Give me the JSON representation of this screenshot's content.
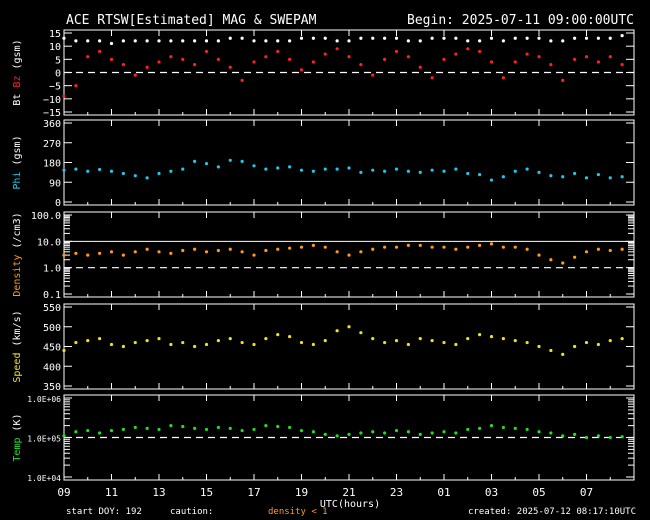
{
  "header": {
    "title": "ACE RTSW[Estimated] MAG & SWEPAM",
    "begin": "Begin: 2025-07-11 09:00:00UTC"
  },
  "footer": {
    "start_doy": "start DOY: 192",
    "caution": "caution:",
    "caution_note": "density < 1",
    "created": "created: 2025-07-12 08:17:10UTC"
  },
  "colors": {
    "background": "#000000",
    "axis": "#ffffff",
    "bt": "#ffffff",
    "bz": "#ff2020",
    "phi": "#20c8e8",
    "density": "#ff9a1a",
    "speed": "#f0e020",
    "temp": "#20e020"
  },
  "chart_data": {
    "type": "scatter",
    "xlabel": "UTC(hours)",
    "x_tick_labels": [
      "09",
      "11",
      "13",
      "15",
      "17",
      "19",
      "21",
      "23",
      "01",
      "03",
      "05",
      "07"
    ],
    "x_range_hours": [
      0,
      24
    ],
    "panels": [
      {
        "id": "mag",
        "ylabel_a": "Bt",
        "ylabel_b": "Bz",
        "ylabel_unit": "(gsm)",
        "ylim": [
          -15,
          15
        ],
        "y_ticks": [
          -15,
          -10,
          -5,
          0,
          5,
          10,
          15
        ],
        "y_tick_labels": [
          "−15",
          "−10",
          "−5",
          "0",
          "5",
          "10",
          "15"
        ],
        "dashed_lines": [
          0
        ],
        "series": [
          {
            "name": "Bt",
            "color_key": "bt",
            "x": [
              0,
              0.5,
              1,
              1.5,
              2,
              2.5,
              3,
              3.5,
              4,
              4.5,
              5,
              5.5,
              6,
              6.5,
              7,
              7.5,
              8,
              8.5,
              9,
              9.5,
              10,
              10.5,
              11,
              11.5,
              12,
              12.5,
              13,
              13.5,
              14,
              14.5,
              15,
              15.5,
              16,
              16.5,
              17,
              17.5,
              18,
              18.5,
              19,
              19.5,
              20,
              20.5,
              21,
              21.5,
              22,
              22.5,
              23,
              23.5
            ],
            "y": [
              13,
              12,
              12,
              12,
              11,
              12,
              12,
              12,
              12,
              12,
              12,
              12,
              12,
              12,
              13,
              13,
              12,
              12,
              12,
              12,
              13,
              13,
              13,
              12,
              12,
              13,
              13,
              13,
              13,
              12,
              12,
              13,
              13,
              13,
              12,
              12,
              13,
              12,
              13,
              13,
              13,
              12,
              12,
              13,
              13,
              13,
              13,
              14
            ]
          },
          {
            "name": "Bz",
            "color_key": "bz",
            "x": [
              0,
              0.5,
              1,
              1.5,
              2,
              2.5,
              3,
              3.5,
              4,
              4.5,
              5,
              5.5,
              6,
              6.5,
              7,
              7.5,
              8,
              8.5,
              9,
              9.5,
              10,
              10.5,
              11,
              11.5,
              12,
              12.5,
              13,
              13.5,
              14,
              14.5,
              15,
              15.5,
              16,
              16.5,
              17,
              17.5,
              18,
              18.5,
              19,
              19.5,
              20,
              20.5,
              21,
              21.5,
              22,
              22.5,
              23,
              23.5
            ],
            "y": [
              -9,
              -5,
              6,
              8,
              5,
              3,
              -1,
              2,
              4,
              6,
              5,
              3,
              8,
              5,
              2,
              -3,
              4,
              6,
              8,
              5,
              1,
              4,
              7,
              9,
              6,
              3,
              -1,
              5,
              8,
              6,
              2,
              -2,
              5,
              7,
              9,
              8,
              4,
              -2,
              4,
              7,
              6,
              3,
              -3,
              5,
              6,
              4,
              6,
              3
            ]
          }
        ]
      },
      {
        "id": "phi",
        "ylabel_a": "Phi",
        "ylabel_unit": "(gsm)",
        "ylim": [
          0,
          360
        ],
        "y_ticks": [
          0,
          90,
          180,
          270,
          360
        ],
        "y_tick_labels": [
          "0",
          "90",
          "180",
          "270",
          "360"
        ],
        "dashed_lines": [],
        "series": [
          {
            "name": "Phi",
            "color_key": "phi",
            "x": [
              0,
              0.5,
              1,
              1.5,
              2,
              2.5,
              3,
              3.5,
              4,
              4.5,
              5,
              5.5,
              6,
              6.5,
              7,
              7.5,
              8,
              8.5,
              9,
              9.5,
              10,
              10.5,
              11,
              11.5,
              12,
              12.5,
              13,
              13.5,
              14,
              14.5,
              15,
              15.5,
              16,
              16.5,
              17,
              17.5,
              18,
              18.5,
              19,
              19.5,
              20,
              20.5,
              21,
              21.5,
              22,
              22.5,
              23,
              23.5
            ],
            "y": [
              145,
              150,
              140,
              148,
              140,
              130,
              120,
              110,
              130,
              140,
              150,
              185,
              175,
              160,
              190,
              185,
              165,
              150,
              155,
              160,
              145,
              140,
              150,
              150,
              155,
              135,
              145,
              140,
              150,
              140,
              135,
              145,
              140,
              150,
              130,
              125,
              100,
              115,
              140,
              150,
              135,
              120,
              115,
              130,
              110,
              125,
              110,
              115
            ]
          }
        ]
      },
      {
        "id": "density",
        "ylabel_a": "Density",
        "ylabel_unit": "(/cm3)",
        "log_scale": true,
        "ylim": [
          0.1,
          100
        ],
        "y_ticks": [
          0.1,
          1,
          10,
          100
        ],
        "y_tick_labels": [
          "0.1",
          "1.0",
          "10.0",
          "100.0"
        ],
        "solid_lines": [
          10
        ],
        "dashed_lines": [
          1
        ],
        "series": [
          {
            "name": "Density",
            "color_key": "density",
            "x": [
              0,
              0.5,
              1,
              1.5,
              2,
              2.5,
              3,
              3.5,
              4,
              4.5,
              5,
              5.5,
              6,
              6.5,
              7,
              7.5,
              8,
              8.5,
              9,
              9.5,
              10,
              10.5,
              11,
              11.5,
              12,
              12.5,
              13,
              13.5,
              14,
              14.5,
              15,
              15.5,
              16,
              16.5,
              17,
              17.5,
              18,
              18.5,
              19,
              19.5,
              20,
              20.5,
              21,
              21.5,
              22,
              22.5,
              23,
              23.5
            ],
            "y": [
              3,
              3.5,
              3,
              3.5,
              4,
              3,
              4,
              5,
              4,
              3.5,
              4.5,
              5,
              4,
              4.5,
              5,
              4,
              3,
              4.5,
              5,
              5.5,
              6,
              7,
              6,
              4,
              3,
              4,
              5,
              6,
              6,
              7,
              7,
              6,
              6,
              5,
              6,
              7,
              8,
              6,
              6,
              5,
              3,
              2,
              1.5,
              2.5,
              4,
              5,
              4.5,
              5
            ]
          }
        ]
      },
      {
        "id": "speed",
        "ylabel_a": "Speed",
        "ylabel_unit": "(km/s)",
        "ylim": [
          350,
          550
        ],
        "y_ticks": [
          350,
          400,
          450,
          500,
          550
        ],
        "y_tick_labels": [
          "350",
          "400",
          "450",
          "500",
          "550"
        ],
        "dashed_lines": [],
        "series": [
          {
            "name": "Speed",
            "color_key": "speed",
            "x": [
              0,
              0.5,
              1,
              1.5,
              2,
              2.5,
              3,
              3.5,
              4,
              4.5,
              5,
              5.5,
              6,
              6.5,
              7,
              7.5,
              8,
              8.5,
              9,
              9.5,
              10,
              10.5,
              11,
              11.5,
              12,
              12.5,
              13,
              13.5,
              14,
              14.5,
              15,
              15.5,
              16,
              16.5,
              17,
              17.5,
              18,
              18.5,
              19,
              19.5,
              20,
              20.5,
              21,
              21.5,
              22,
              22.5,
              23,
              23.5
            ],
            "y": [
              440,
              460,
              465,
              470,
              455,
              450,
              460,
              465,
              470,
              455,
              460,
              450,
              455,
              465,
              470,
              460,
              455,
              470,
              480,
              475,
              460,
              455,
              465,
              490,
              500,
              485,
              470,
              460,
              465,
              455,
              470,
              465,
              460,
              455,
              470,
              480,
              475,
              470,
              465,
              460,
              450,
              440,
              430,
              450,
              460,
              455,
              465,
              470
            ]
          }
        ]
      },
      {
        "id": "temp",
        "ylabel_a": "Temp",
        "ylabel_unit": "(K)",
        "log_scale": true,
        "ylim": [
          10000,
          1000000
        ],
        "y_ticks": [
          10000,
          100000,
          1000000
        ],
        "y_tick_labels": [
          "1.0E+04",
          "1.0E+05",
          "1.0E+06"
        ],
        "dashed_lines": [
          100000
        ],
        "series": [
          {
            "name": "Temp",
            "color_key": "temp",
            "x": [
              0,
              0.5,
              1,
              1.5,
              2,
              2.5,
              3,
              3.5,
              4,
              4.5,
              5,
              5.5,
              6,
              6.5,
              7,
              7.5,
              8,
              8.5,
              9,
              9.5,
              10,
              10.5,
              11,
              11.5,
              12,
              12.5,
              13,
              13.5,
              14,
              14.5,
              15,
              15.5,
              16,
              16.5,
              17,
              17.5,
              18,
              18.5,
              19,
              19.5,
              20,
              20.5,
              21,
              21.5,
              22,
              22.5,
              23,
              23.5
            ],
            "y": [
              110000,
              140000,
              150000,
              130000,
              150000,
              160000,
              180000,
              170000,
              160000,
              200000,
              190000,
              170000,
              160000,
              180000,
              170000,
              150000,
              160000,
              200000,
              190000,
              180000,
              150000,
              140000,
              120000,
              110000,
              120000,
              130000,
              140000,
              130000,
              150000,
              140000,
              120000,
              130000,
              140000,
              130000,
              160000,
              170000,
              200000,
              180000,
              170000,
              160000,
              140000,
              130000,
              110000,
              120000,
              100000,
              110000,
              100000,
              105000
            ]
          }
        ]
      }
    ]
  }
}
